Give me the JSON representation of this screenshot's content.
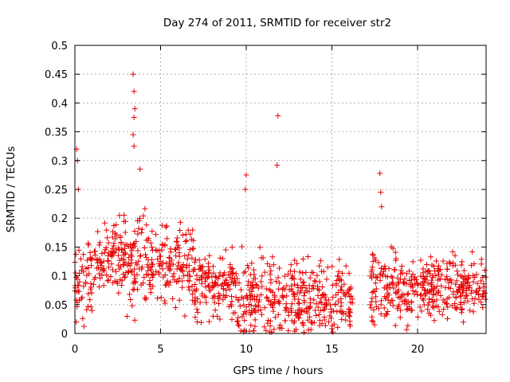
{
  "chart_data": {
    "type": "scatter",
    "title": "Day 274 of 2011, SRMTID for receiver str2",
    "xlabel": "GPS time / hours",
    "ylabel": "SRMTID / TECUs",
    "xlim": [
      0,
      24
    ],
    "ylim": [
      0,
      0.5
    ],
    "x_ticks": [
      0,
      5,
      10,
      15,
      20
    ],
    "x_tick_labels": [
      "0",
      "5",
      "10",
      "15",
      "20"
    ],
    "y_ticks": [
      0,
      0.05,
      0.1,
      0.15,
      0.2,
      0.25,
      0.3,
      0.35,
      0.4,
      0.45,
      0.5
    ],
    "y_tick_labels": [
      "0",
      "0.05",
      "0.1",
      "0.15",
      "0.2",
      "0.25",
      "0.3",
      "0.35",
      "0.4",
      "0.45",
      "0.5"
    ],
    "grid": true,
    "marker": "+",
    "series": [
      {
        "name": "str2",
        "color": "#e60000",
        "notable_points": [
          {
            "x": 0.1,
            "y": 0.32
          },
          {
            "x": 0.15,
            "y": 0.3
          },
          {
            "x": 0.2,
            "y": 0.25
          },
          {
            "x": 3.4,
            "y": 0.45
          },
          {
            "x": 3.45,
            "y": 0.42
          },
          {
            "x": 3.5,
            "y": 0.39
          },
          {
            "x": 3.45,
            "y": 0.375
          },
          {
            "x": 3.4,
            "y": 0.345
          },
          {
            "x": 3.45,
            "y": 0.325
          },
          {
            "x": 3.8,
            "y": 0.285
          },
          {
            "x": 10.0,
            "y": 0.275
          },
          {
            "x": 9.95,
            "y": 0.25
          },
          {
            "x": 11.85,
            "y": 0.378
          },
          {
            "x": 11.8,
            "y": 0.292
          },
          {
            "x": 17.8,
            "y": 0.278
          },
          {
            "x": 17.85,
            "y": 0.245
          },
          {
            "x": 17.9,
            "y": 0.22
          }
        ],
        "density_profile": [
          {
            "from": 0.0,
            "to": 1.0,
            "center": 0.09,
            "spread": 0.045
          },
          {
            "from": 1.0,
            "to": 3.0,
            "center": 0.13,
            "spread": 0.04
          },
          {
            "from": 3.0,
            "to": 7.0,
            "center": 0.12,
            "spread": 0.05
          },
          {
            "from": 7.0,
            "to": 9.5,
            "center": 0.08,
            "spread": 0.04
          },
          {
            "from": 9.5,
            "to": 12.0,
            "center": 0.06,
            "spread": 0.05
          },
          {
            "from": 12.0,
            "to": 16.2,
            "center": 0.06,
            "spread": 0.045
          },
          {
            "from": 17.2,
            "to": 19.0,
            "center": 0.08,
            "spread": 0.045
          },
          {
            "from": 19.0,
            "to": 24.0,
            "center": 0.08,
            "spread": 0.035
          }
        ],
        "data_gap": [
          16.3,
          17.1
        ]
      }
    ]
  }
}
